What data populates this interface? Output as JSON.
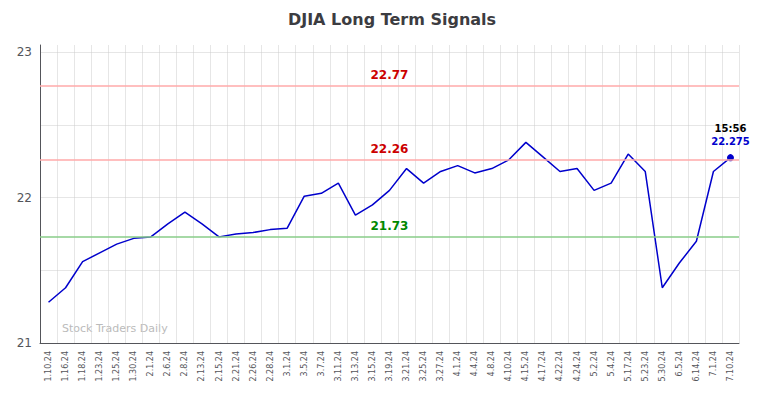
{
  "chart_data": {
    "type": "line",
    "title": "DJIA Long Term Signals",
    "color": "#0000cc",
    "categories": [
      "1.10.24",
      "1.16.24",
      "1.18.24",
      "1.23.24",
      "1.25.24",
      "1.30.24",
      "2.1.24",
      "2.6.24",
      "2.8.24",
      "2.13.24",
      "2.15.24",
      "2.21.24",
      "2.26.24",
      "2.28.24",
      "3.1.24",
      "3.5.24",
      "3.7.24",
      "3.11.24",
      "3.13.24",
      "3.15.24",
      "3.19.24",
      "3.21.24",
      "3.25.24",
      "3.27.24",
      "4.1.24",
      "4.4.24",
      "4.8.24",
      "4.10.24",
      "4.15.24",
      "4.17.24",
      "4.22.24",
      "4.24.24",
      "5.2.24",
      "5.4.24",
      "5.17.24",
      "5.23.24",
      "5.30.24",
      "6.5.24",
      "6.14.24",
      "7.1.24",
      "7.10.24"
    ],
    "values": [
      21.28,
      21.38,
      21.56,
      21.62,
      21.68,
      21.72,
      21.73,
      21.82,
      21.9,
      21.82,
      21.73,
      21.75,
      21.76,
      21.78,
      21.79,
      22.01,
      22.03,
      22.1,
      21.88,
      21.95,
      22.05,
      22.2,
      22.1,
      22.18,
      22.22,
      22.17,
      22.2,
      22.26,
      22.38,
      22.28,
      22.18,
      22.2,
      22.05,
      22.1,
      22.3,
      22.18,
      21.38,
      21.55,
      21.7,
      22.18,
      22.275
    ],
    "ylim": [
      21.0,
      23.05
    ],
    "yticks": [
      21,
      {
        "value": 21.5,
        "label": ""
      },
      22,
      {
        "value": 22.5,
        "label": ""
      },
      23
    ],
    "grid": true,
    "reference_lines": [
      {
        "value": 22.77,
        "label": "22.77",
        "color": "#ffaaaa",
        "label_color": "#cc0000"
      },
      {
        "value": 22.26,
        "label": "22.26",
        "color": "#ffaaaa",
        "label_color": "#cc0000"
      },
      {
        "value": 21.73,
        "label": "21.73",
        "color": "#88cc88",
        "label_color": "#008800"
      }
    ],
    "annotations": [
      {
        "text": "15:56",
        "color": "#000000"
      },
      {
        "text": "22.275",
        "color": "#0000cc"
      }
    ],
    "watermark": "Stock Traders Daily"
  }
}
